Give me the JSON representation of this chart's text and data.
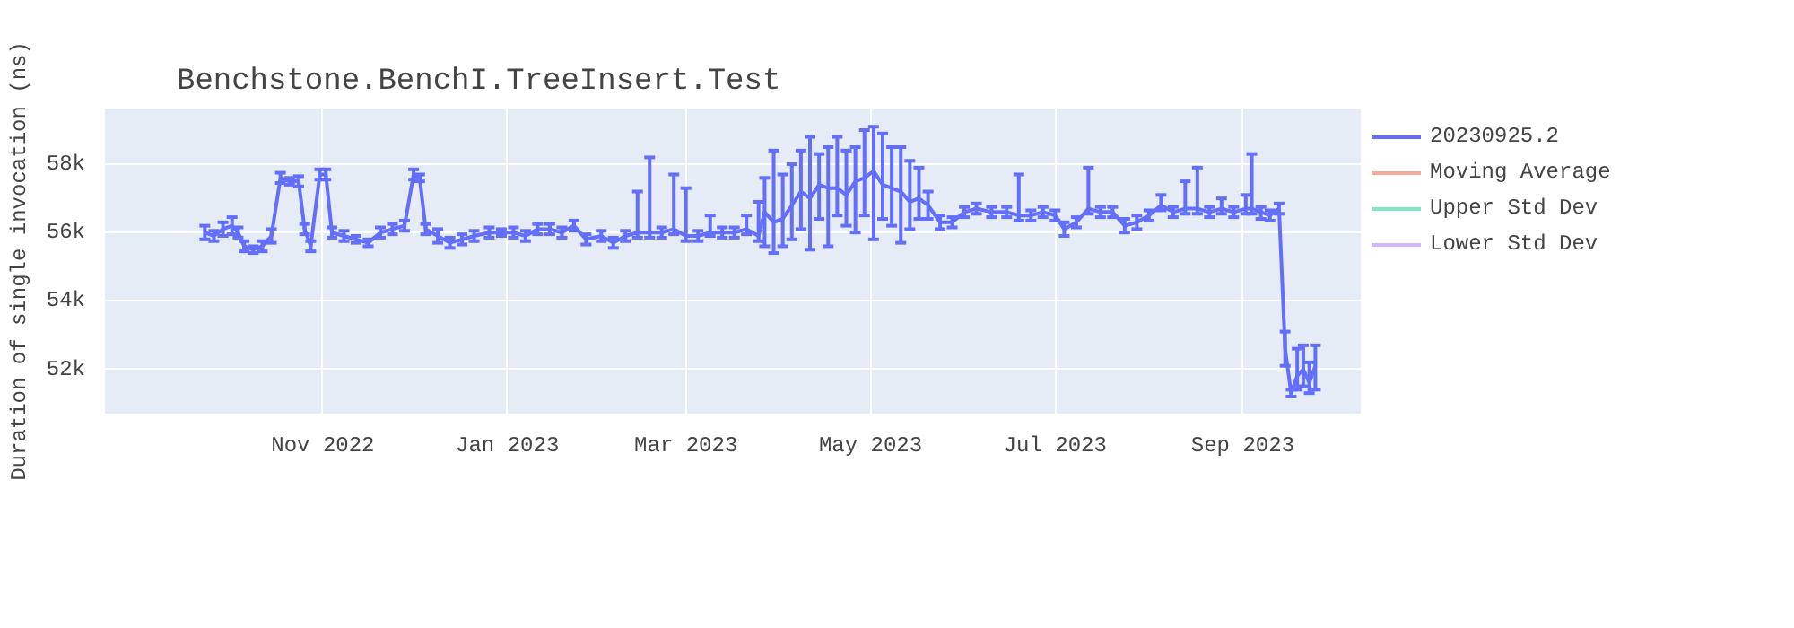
{
  "chart_data": {
    "type": "line",
    "title": "Benchstone.BenchI.TreeInsert.Test",
    "ylabel": "Duration of single invocation (ns)",
    "xlim": [
      "2022-08-21",
      "2023-10-10"
    ],
    "xticks": [
      {
        "value": "2022-11-01",
        "label": "Nov 2022"
      },
      {
        "value": "2023-01-01",
        "label": "Jan 2023"
      },
      {
        "value": "2023-03-01",
        "label": "Mar 2023"
      },
      {
        "value": "2023-05-01",
        "label": "May 2023"
      },
      {
        "value": "2023-07-01",
        "label": "Jul 2023"
      },
      {
        "value": "2023-09-01",
        "label": "Sep 2023"
      }
    ],
    "ylim": [
      50700,
      59630
    ],
    "yticks": [
      {
        "value": 52000,
        "label": "52k"
      },
      {
        "value": 54000,
        "label": "54k"
      },
      {
        "value": 56000,
        "label": "56k"
      },
      {
        "value": 58000,
        "label": "58k"
      }
    ],
    "grid": true,
    "legend": "top right",
    "marker": "none",
    "line_style": "solid",
    "series": [
      {
        "name": "20230925.2",
        "color": "#636efa",
        "x": [
          "2022-09-23",
          "2022-09-26",
          "2022-09-29",
          "2022-10-02",
          "2022-10-04",
          "2022-10-06",
          "2022-10-09",
          "2022-10-12",
          "2022-10-15",
          "2022-10-18",
          "2022-10-21",
          "2022-10-24",
          "2022-10-26",
          "2022-10-28",
          "2022-10-31",
          "2022-11-02",
          "2022-11-04",
          "2022-11-08",
          "2022-11-12",
          "2022-11-16",
          "2022-11-20",
          "2022-11-24",
          "2022-11-28",
          "2022-12-01",
          "2022-12-03",
          "2022-12-05",
          "2022-12-09",
          "2022-12-13",
          "2022-12-17",
          "2022-12-21",
          "2022-12-26",
          "2022-12-30",
          "2023-01-03",
          "2023-01-07",
          "2023-01-11",
          "2023-01-15",
          "2023-01-19",
          "2023-01-23",
          "2023-01-27",
          "2023-02-01",
          "2023-02-05",
          "2023-02-09",
          "2023-02-13",
          "2023-02-17",
          "2023-02-21",
          "2023-02-25",
          "2023-03-01",
          "2023-03-05",
          "2023-03-09",
          "2023-03-13",
          "2023-03-17",
          "2023-03-21",
          "2023-03-25",
          "2023-03-27",
          "2023-03-30",
          "2023-04-02",
          "2023-04-05",
          "2023-04-08",
          "2023-04-11",
          "2023-04-14",
          "2023-04-17",
          "2023-04-20",
          "2023-04-23",
          "2023-04-26",
          "2023-04-29",
          "2023-05-02",
          "2023-05-05",
          "2023-05-08",
          "2023-05-11",
          "2023-05-14",
          "2023-05-17",
          "2023-05-20",
          "2023-05-24",
          "2023-05-28",
          "2023-06-01",
          "2023-06-05",
          "2023-06-10",
          "2023-06-15",
          "2023-06-19",
          "2023-06-23",
          "2023-06-27",
          "2023-07-01",
          "2023-07-04",
          "2023-07-08",
          "2023-07-12",
          "2023-07-16",
          "2023-07-20",
          "2023-07-24",
          "2023-07-28",
          "2023-08-01",
          "2023-08-05",
          "2023-08-09",
          "2023-08-13",
          "2023-08-17",
          "2023-08-21",
          "2023-08-25",
          "2023-08-29",
          "2023-09-02",
          "2023-09-04",
          "2023-09-07",
          "2023-09-10",
          "2023-09-13",
          "2023-09-15",
          "2023-09-17",
          "2023-09-19",
          "2023-09-21",
          "2023-09-23",
          "2023-09-25"
        ],
        "values": [
          56000,
          55900,
          56100,
          56200,
          56000,
          55600,
          55500,
          55600,
          55900,
          57600,
          57500,
          57500,
          56100,
          55600,
          57700,
          57700,
          56000,
          55900,
          55800,
          55700,
          56000,
          56100,
          56200,
          57700,
          57600,
          56100,
          55900,
          55700,
          55800,
          55900,
          56000,
          56000,
          56000,
          55900,
          56100,
          56100,
          56000,
          56200,
          55800,
          55900,
          55700,
          55900,
          56000,
          56000,
          56000,
          56100,
          55900,
          55900,
          56000,
          56000,
          56000,
          56100,
          55900,
          56600,
          56300,
          56400,
          56800,
          57200,
          57000,
          57400,
          57300,
          57300,
          57100,
          57500,
          57600,
          57800,
          57400,
          57300,
          57200,
          56900,
          57000,
          56800,
          56300,
          56300,
          56600,
          56700,
          56600,
          56600,
          56500,
          56500,
          56600,
          56500,
          56100,
          56300,
          56700,
          56600,
          56600,
          56200,
          56300,
          56500,
          56800,
          56600,
          56700,
          56700,
          56600,
          56700,
          56600,
          56700,
          56700,
          56600,
          56500,
          56700,
          52600,
          51300,
          51800,
          52000,
          51600,
          52100
        ],
        "errors": [
          200,
          150,
          200,
          250,
          150,
          150,
          100,
          150,
          200,
          150,
          100,
          150,
          150,
          150,
          150,
          150,
          150,
          150,
          100,
          100,
          150,
          150,
          150,
          150,
          100,
          150,
          200,
          150,
          150,
          150,
          150,
          100,
          150,
          150,
          150,
          150,
          150,
          150,
          150,
          150,
          150,
          150,
          [
            55850,
            57200
          ],
          [
            55850,
            58200
          ],
          150,
          [
            55950,
            57700
          ],
          [
            55750,
            57300
          ],
          150,
          [
            55900,
            56500
          ],
          150,
          150,
          [
            55950,
            56500
          ],
          [
            55750,
            56900
          ],
          [
            55600,
            57600
          ],
          [
            55400,
            58400
          ],
          [
            55600,
            57700
          ],
          [
            55800,
            58000
          ],
          [
            56100,
            58400
          ],
          [
            55500,
            58800
          ],
          [
            56400,
            58300
          ],
          [
            55600,
            58500
          ],
          [
            56500,
            58800
          ],
          [
            56200,
            58400
          ],
          [
            56000,
            58500
          ],
          [
            56500,
            59000
          ],
          [
            55800,
            59100
          ],
          [
            56400,
            58900
          ],
          [
            56200,
            58500
          ],
          [
            55700,
            58500
          ],
          [
            56100,
            58100
          ],
          [
            56400,
            57900
          ],
          [
            56400,
            57200
          ],
          [
            56100,
            56500
          ],
          150,
          150,
          150,
          150,
          150,
          [
            56350,
            57700
          ],
          150,
          150,
          150,
          200,
          150,
          [
            56550,
            57900
          ],
          150,
          150,
          200,
          200,
          150,
          [
            56650,
            57100
          ],
          150,
          [
            56550,
            57500
          ],
          [
            56550,
            57900
          ],
          150,
          [
            56550,
            57000
          ],
          150,
          [
            56550,
            57100
          ],
          [
            56550,
            58300
          ],
          [
            56400,
            56750
          ],
          150,
          150,
          [
            52100,
            53100
          ],
          100,
          [
            51400,
            52600
          ],
          [
            51500,
            52700
          ],
          [
            51300,
            52200
          ],
          [
            51400,
            52700
          ]
        ]
      },
      {
        "name": "Moving Average",
        "color": "#f7a99b"
      },
      {
        "name": "Upper Std Dev",
        "color": "#80e6c4"
      },
      {
        "name": "Lower Std Dev",
        "color": "#d1b6fd"
      }
    ]
  }
}
